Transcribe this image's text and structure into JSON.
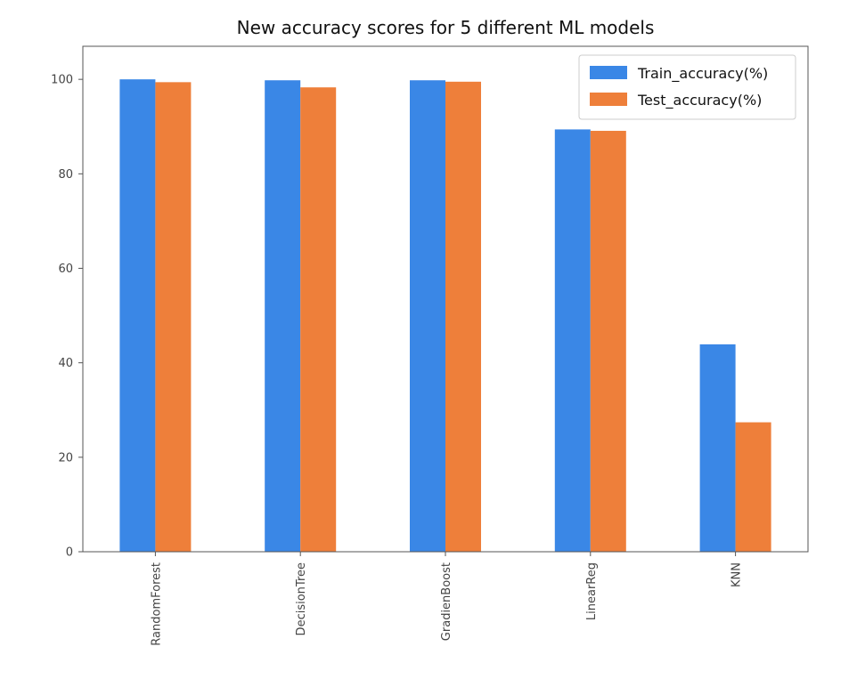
{
  "chart_data": {
    "type": "bar",
    "title": "New accuracy scores for 5 different ML models",
    "xlabel": "",
    "ylabel": "",
    "categories": [
      "RandomForest",
      "DecisionTree",
      "GradienBoost",
      "LinearReg",
      "KNN"
    ],
    "series": [
      {
        "name": "Train_accuracy(%)",
        "values": [
          100.0,
          99.8,
          99.8,
          89.4,
          43.9
        ],
        "color": "#3a87e6"
      },
      {
        "name": "Test_accuracy(%)",
        "values": [
          99.4,
          98.3,
          99.5,
          89.1,
          27.4
        ],
        "color": "#ee7f3a"
      }
    ],
    "ylim": [
      0,
      107
    ],
    "yticks": [
      0,
      20,
      40,
      60,
      80,
      100
    ],
    "grid": false,
    "legend_position": "top-right"
  }
}
